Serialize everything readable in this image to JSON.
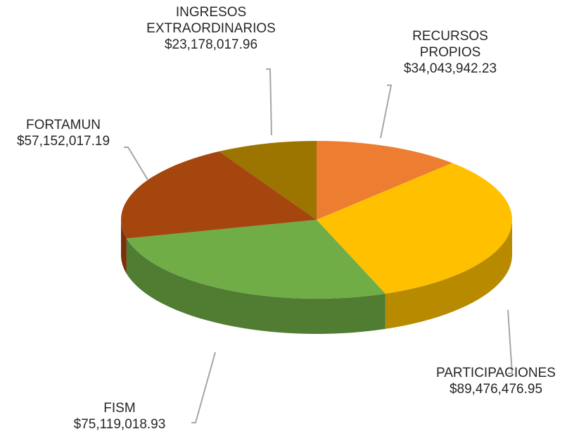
{
  "chart_data": {
    "type": "pie",
    "categories": [
      "RECURSOS PROPIOS",
      "PARTICIPACIONES",
      "FISM",
      "FORTAMUN",
      "INGRESOS EXTRAORDINARIOS"
    ],
    "values": [
      34043942.23,
      89476476.95,
      75119018.93,
      57152017.19,
      23178017.96
    ],
    "value_labels": [
      "$34,043,942.23",
      "$89,476,476.95",
      "$75,119,018.93",
      "$57,152,017.19",
      "$23,178,017.96"
    ],
    "colors": [
      "#ED7D31",
      "#FFC000",
      "#70AD47",
      "#A5460F",
      "#9C7400"
    ],
    "three_d": true
  }
}
